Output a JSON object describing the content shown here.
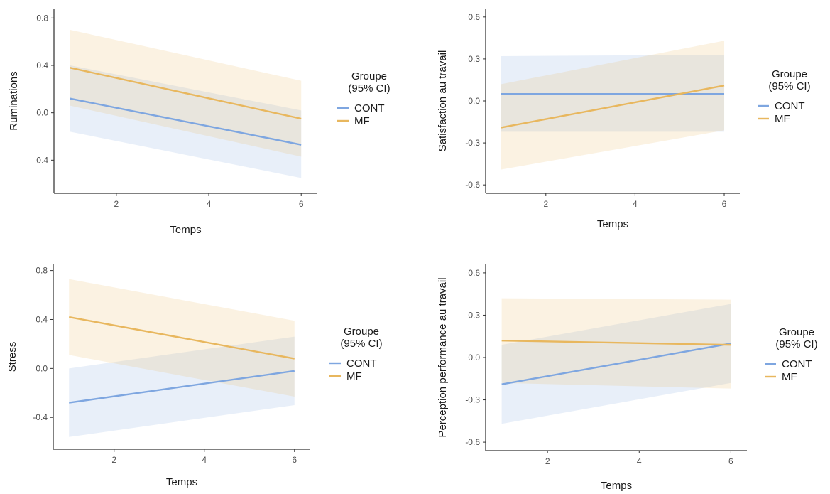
{
  "colors": {
    "CONT": "#7ea6e0",
    "MF": "#e8b75e"
  },
  "chart_data": [
    {
      "type": "line",
      "xlabel": "Temps",
      "ylabel": "Ruminations",
      "xlim": [
        0.65,
        6.35
      ],
      "ylim": [
        -0.68,
        0.88
      ],
      "xticks": [
        2,
        4,
        6
      ],
      "yticks": [
        -0.4,
        0.0,
        0.4,
        0.8
      ],
      "ytick_labels": [
        "-0.4",
        "0.0",
        "0.4",
        "0.8"
      ],
      "legend_title": [
        "Groupe",
        "(95% CI)"
      ],
      "series": [
        {
          "name": "CONT",
          "x": [
            1,
            6
          ],
          "y": [
            0.12,
            -0.27
          ],
          "ci_lower": [
            -0.16,
            -0.55
          ],
          "ci_upper": [
            0.4,
            0.02
          ]
        },
        {
          "name": "MF",
          "x": [
            1,
            6
          ],
          "y": [
            0.38,
            -0.05
          ],
          "ci_lower": [
            0.06,
            -0.37
          ],
          "ci_upper": [
            0.7,
            0.27
          ]
        }
      ]
    },
    {
      "type": "line",
      "xlabel": "Temps",
      "ylabel": "Satisfaction au travail",
      "xlim": [
        0.65,
        6.35
      ],
      "ylim": [
        -0.66,
        0.66
      ],
      "xticks": [
        2,
        4,
        6
      ],
      "yticks": [
        -0.6,
        -0.3,
        0.0,
        0.3,
        0.6
      ],
      "ytick_labels": [
        "-0.6",
        "-0.3",
        "0.0",
        "0.3",
        "0.6"
      ],
      "legend_title": [
        "Groupe",
        "(95% CI)"
      ],
      "series": [
        {
          "name": "CONT",
          "x": [
            1,
            6
          ],
          "y": [
            0.05,
            0.05
          ],
          "ci_lower": [
            -0.22,
            -0.22
          ],
          "ci_upper": [
            0.32,
            0.33
          ]
        },
        {
          "name": "MF",
          "x": [
            1,
            6
          ],
          "y": [
            -0.19,
            0.11
          ],
          "ci_lower": [
            -0.49,
            -0.21
          ],
          "ci_upper": [
            0.12,
            0.43
          ]
        }
      ]
    },
    {
      "type": "line",
      "xlabel": "Temps",
      "ylabel": "Stress",
      "xlim": [
        0.65,
        6.35
      ],
      "ylim": [
        -0.66,
        0.85
      ],
      "xticks": [
        2,
        4,
        6
      ],
      "yticks": [
        -0.4,
        0.0,
        0.4,
        0.8
      ],
      "ytick_labels": [
        "-0.4",
        "0.0",
        "0.4",
        "0.8"
      ],
      "legend_title": [
        "Groupe",
        "(95% CI)"
      ],
      "series": [
        {
          "name": "CONT",
          "x": [
            1,
            6
          ],
          "y": [
            -0.28,
            -0.02
          ],
          "ci_lower": [
            -0.56,
            -0.3
          ],
          "ci_upper": [
            0.0,
            0.26
          ]
        },
        {
          "name": "MF",
          "x": [
            1,
            6
          ],
          "y": [
            0.42,
            0.08
          ],
          "ci_lower": [
            0.11,
            -0.23
          ],
          "ci_upper": [
            0.73,
            0.39
          ]
        }
      ]
    },
    {
      "type": "line",
      "xlabel": "Temps",
      "ylabel": "Perception performance au travail",
      "xlim": [
        0.65,
        6.35
      ],
      "ylim": [
        -0.66,
        0.66
      ],
      "xticks": [
        2,
        4,
        6
      ],
      "yticks": [
        -0.6,
        -0.3,
        0.0,
        0.3,
        0.6
      ],
      "ytick_labels": [
        "-0.6",
        "-0.3",
        "0.0",
        "0.3",
        "0.6"
      ],
      "legend_title": [
        "Groupe",
        "(95% CI)"
      ],
      "series": [
        {
          "name": "CONT",
          "x": [
            1,
            6
          ],
          "y": [
            -0.19,
            0.1
          ],
          "ci_lower": [
            -0.47,
            -0.18
          ],
          "ci_upper": [
            0.09,
            0.38
          ]
        },
        {
          "name": "MF",
          "x": [
            1,
            6
          ],
          "y": [
            0.12,
            0.09
          ],
          "ci_lower": [
            -0.18,
            -0.22
          ],
          "ci_upper": [
            0.42,
            0.41
          ]
        }
      ]
    }
  ]
}
